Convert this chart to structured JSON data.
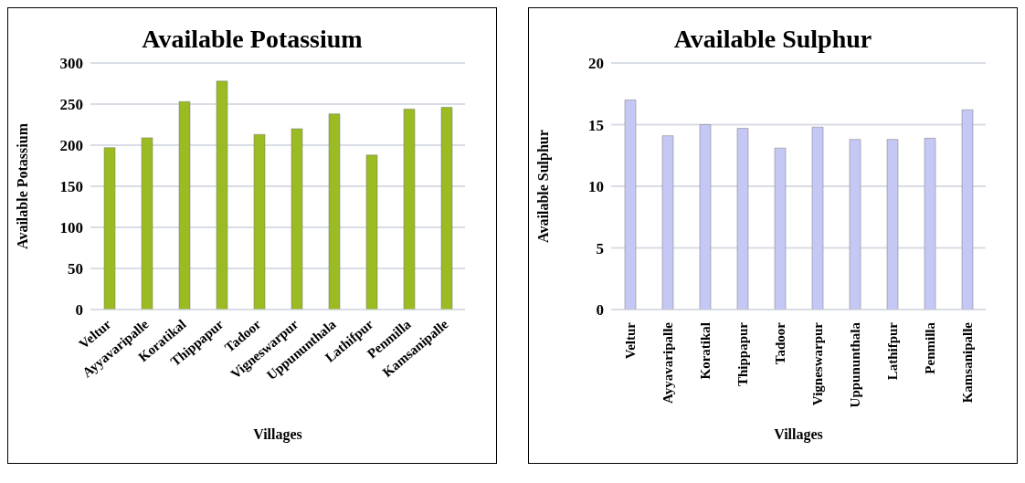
{
  "chart_data": [
    {
      "type": "bar",
      "title": "Available Potassium",
      "xlabel": "Villages",
      "ylabel": "Available Potassium",
      "categories": [
        "Veltur",
        "Ayyavaripalle",
        "Koratikal",
        "Thippapur",
        "Tadoor",
        "Vigneswarpur",
        "Uppununthala",
        "Lathifpur",
        "Penmilla",
        "Kamsanipalle"
      ],
      "values": [
        197,
        209,
        253,
        278,
        213,
        220,
        238,
        188,
        244,
        246
      ],
      "color": "#9bbb22",
      "ylim": [
        0,
        300
      ],
      "yticks": [
        0,
        50,
        100,
        150,
        200,
        250,
        300
      ],
      "grid": "y"
    },
    {
      "type": "bar",
      "title": "Available Sulphur",
      "xlabel": "Villages",
      "ylabel": "Available Sulphur",
      "categories": [
        "Veltur",
        "Ayyavaripalle",
        "Koratikal",
        "Thippapur",
        "Tadoor",
        "Vigneswarpur",
        "Uppununthala",
        "Lathifpur",
        "Penmilla",
        "Kamsanipalle"
      ],
      "values": [
        17.0,
        14.1,
        15.0,
        14.7,
        13.1,
        14.8,
        13.8,
        13.8,
        13.9,
        16.2
      ],
      "color": "#c5c8f5",
      "ylim": [
        0,
        20
      ],
      "yticks": [
        0,
        5,
        10,
        15,
        20
      ],
      "grid": "y"
    }
  ]
}
